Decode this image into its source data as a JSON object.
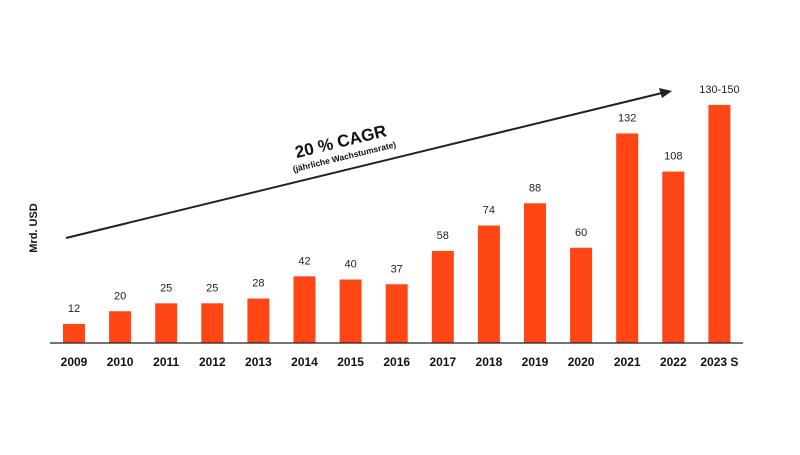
{
  "chart_data": {
    "type": "bar",
    "ylabel": "Mrd. USD",
    "categories": [
      "2009",
      "2010",
      "2011",
      "2012",
      "2013",
      "2014",
      "2015",
      "2016",
      "2017",
      "2018",
      "2019",
      "2020",
      "2021",
      "2022",
      "2023 S"
    ],
    "values": [
      12,
      20,
      25,
      25,
      28,
      42,
      40,
      37,
      58,
      74,
      88,
      60,
      132,
      108,
      150
    ],
    "value_labels": [
      "12",
      "20",
      "25",
      "25",
      "28",
      "42",
      "40",
      "37",
      "58",
      "74",
      "88",
      "60",
      "132",
      "108",
      "130-150"
    ],
    "ylim": [
      0,
      160
    ],
    "grid": false,
    "bar_color": "#ff4614",
    "annotation": {
      "title": "20 % CAGR",
      "subtitle": "(jährliche Wachstumsrate)"
    }
  }
}
